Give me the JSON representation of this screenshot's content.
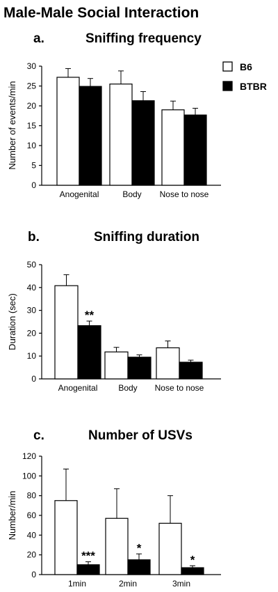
{
  "figure_title": "Male-Male Social Interaction",
  "legend": [
    {
      "label": "B6",
      "color": "#ffffff"
    },
    {
      "label": "BTBR",
      "color": "#000000"
    }
  ],
  "chart_data": [
    {
      "type": "bar",
      "panel": "a.",
      "title": "Sniffing frequency",
      "xlabel": "",
      "ylabel": "Number of events/min",
      "categories": [
        "Anogenital",
        "Body",
        "Nose to nose"
      ],
      "ylim": [
        0,
        30
      ],
      "yticks": [
        0,
        5,
        10,
        15,
        20,
        25,
        30
      ],
      "series": [
        {
          "name": "B6",
          "color": "#ffffff",
          "values": [
            27.2,
            25.5,
            19.0
          ],
          "errors": [
            2.2,
            3.3,
            2.2
          ]
        },
        {
          "name": "BTBR",
          "color": "#000000",
          "values": [
            24.9,
            21.3,
            17.7
          ],
          "errors": [
            2.0,
            2.3,
            1.7
          ]
        }
      ],
      "annotations": [
        "",
        "",
        ""
      ]
    },
    {
      "type": "bar",
      "panel": "b.",
      "title": "Sniffing duration",
      "xlabel": "",
      "ylabel": "Duration (sec)",
      "categories": [
        "Anogenital",
        "Body",
        "Nose to nose"
      ],
      "ylim": [
        0,
        50
      ],
      "yticks": [
        0,
        10,
        20,
        30,
        40,
        50
      ],
      "series": [
        {
          "name": "B6",
          "color": "#ffffff",
          "values": [
            40.8,
            11.8,
            13.6
          ],
          "errors": [
            4.8,
            2.0,
            3.0
          ]
        },
        {
          "name": "BTBR",
          "color": "#000000",
          "values": [
            23.3,
            9.5,
            7.3
          ],
          "errors": [
            2.0,
            1.0,
            0.9
          ]
        }
      ],
      "annotations": [
        "**",
        "",
        ""
      ]
    },
    {
      "type": "bar",
      "panel": "c.",
      "title": "Number of USVs",
      "xlabel": "",
      "ylabel": "Number/min",
      "categories": [
        "1min",
        "2min",
        "3min"
      ],
      "ylim": [
        0,
        120
      ],
      "yticks": [
        0,
        20,
        40,
        60,
        80,
        100,
        120
      ],
      "series": [
        {
          "name": "B6",
          "color": "#ffffff",
          "values": [
            75,
            57,
            52
          ],
          "errors": [
            32,
            30,
            28
          ]
        },
        {
          "name": "BTBR",
          "color": "#000000",
          "values": [
            10,
            15,
            7
          ],
          "errors": [
            3,
            6,
            2
          ]
        }
      ],
      "annotations": [
        "***",
        "*",
        "*"
      ]
    }
  ]
}
